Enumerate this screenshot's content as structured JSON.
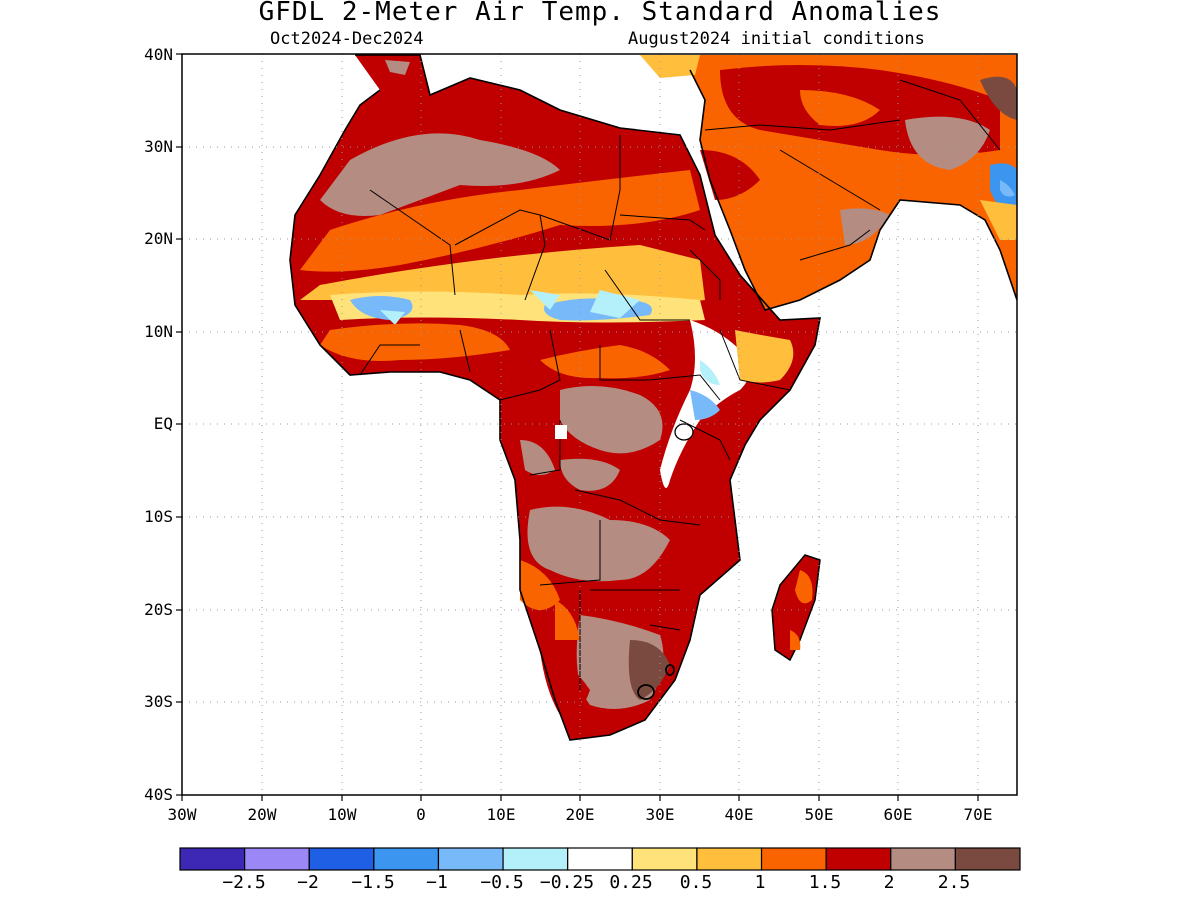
{
  "title": "GFDL 2-Meter Air Temp. Standard Anomalies",
  "period": "Oct2024-Dec2024",
  "initial_conditions": "August2024 initial conditions",
  "lat_labels": [
    "40N",
    "30N",
    "20N",
    "10N",
    "EQ",
    "10S",
    "20S",
    "30S",
    "40S"
  ],
  "lon_labels": [
    "30W",
    "20W",
    "10W",
    "0",
    "10E",
    "20E",
    "30E",
    "40E",
    "50E",
    "60E",
    "70E"
  ],
  "extent": {
    "lon": [
      -30,
      75
    ],
    "lat": [
      -40,
      40
    ]
  },
  "grid_lines": true,
  "colorbar": {
    "colors": [
      "#3c28b4",
      "#9b87f5",
      "#1f5fe6",
      "#3c96f0",
      "#78b9fa",
      "#b4f0fa",
      "#ffffff",
      "#ffe37a",
      "#ffbe3c",
      "#fa6400",
      "#c00000",
      "#b48c82",
      "#7a4a40"
    ],
    "labels": [
      "−2.5",
      "−2",
      "−1.5",
      "−1",
      "−0.5",
      "−0.25",
      "0.25",
      "0.5",
      "1",
      "1.5",
      "2",
      "2.5"
    ]
  },
  "colors": {
    "land_fill": "#fa6400",
    "coastline": "#000000"
  },
  "anomaly_regions": [
    {
      "name": "north-africa-band-2",
      "level": 2
    },
    {
      "name": "sahara-2.5",
      "level": 2.5
    },
    {
      "name": "sahel-1.5",
      "level": 1.5
    },
    {
      "name": "sahel-1",
      "level": 1
    },
    {
      "name": "sahel-0.5",
      "level": 0.5
    },
    {
      "name": "sahel-cool",
      "level": -0.5
    },
    {
      "name": "central-africa-2",
      "level": 2
    },
    {
      "name": "congo-2.5",
      "level": 2.5
    },
    {
      "name": "east-africa-cool",
      "level": -0.25
    },
    {
      "name": "southern-africa-2",
      "level": 2
    },
    {
      "name": "southern-africa-2.5",
      "level": 2.5
    },
    {
      "name": "south-africa-3",
      "level": 3
    },
    {
      "name": "arabia-1.5",
      "level": 1.5
    },
    {
      "name": "arabia-2",
      "level": 2
    },
    {
      "name": "madagascar-2",
      "level": 2
    },
    {
      "name": "iran-2",
      "level": 2
    },
    {
      "name": "india-cool",
      "level": -1
    }
  ]
}
